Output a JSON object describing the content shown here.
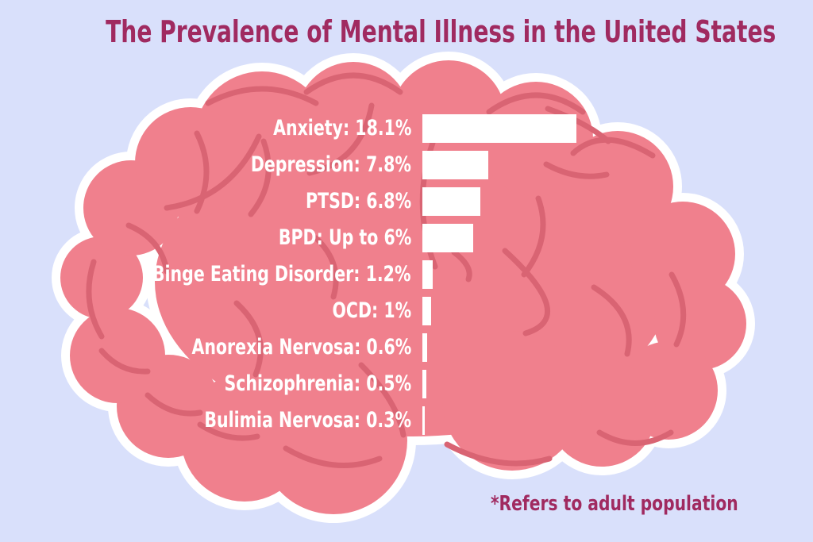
{
  "page": {
    "title": "The Prevalence of Mental Illness in the United States",
    "footnote": "*Refers to adult population"
  },
  "colors": {
    "background": "#d9e0fb",
    "title_text": "#a02a60",
    "brain_fill": "#f0808d",
    "brain_fold": "#d96473",
    "brain_outline": "#ffffff",
    "bar_fill": "#ffffff",
    "label_text": "#ffffff"
  },
  "illustration": {
    "name": "brain-icon",
    "description": "cartoon pink brain with white outline behind the chart"
  },
  "chart_data": {
    "type": "bar",
    "orientation": "horizontal",
    "title": "The Prevalence of Mental Illness in the United States",
    "xlabel": "",
    "ylabel": "",
    "unit": "% of U.S. adult population",
    "xlim": [
      0,
      18.5
    ],
    "grid": false,
    "legend": false,
    "axes_hidden": true,
    "categories": [
      "Anxiety",
      "Depression",
      "PTSD",
      "BPD",
      "Binge Eating Disorder",
      "OCD",
      "Anorexia Nervosa",
      "Schizophrenia",
      "Bulimia Nervosa"
    ],
    "values": [
      18.1,
      7.8,
      6.8,
      6,
      1.2,
      1,
      0.6,
      0.5,
      0.3
    ],
    "labels": [
      "Anxiety: 18.1%",
      "Depression: 7.8%",
      "PTSD: 6.8%",
      "BPD: Up to 6%",
      "Binge Eating Disorder: 1.2%",
      "OCD: 1%",
      "Anorexia Nervosa: 0.6%",
      "Schizophrenia: 0.5%",
      "Bulimia Nervosa: 0.3%"
    ],
    "annotations": [
      "*Refers to adult population"
    ]
  }
}
